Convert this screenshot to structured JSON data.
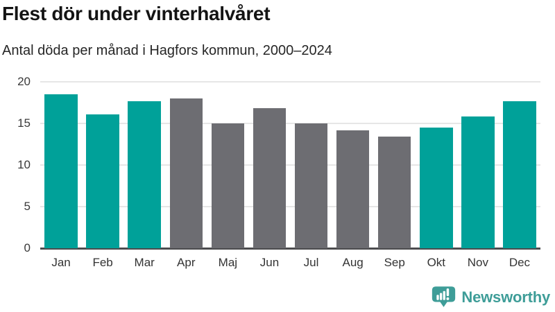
{
  "chart_data": {
    "type": "bar",
    "title": "Flest dör under vinterhalvåret",
    "subtitle": "Antal döda per månad i Hagfors kommun, 2000–2024",
    "categories": [
      "Jan",
      "Feb",
      "Mar",
      "Apr",
      "Maj",
      "Jun",
      "Jul",
      "Aug",
      "Sep",
      "Okt",
      "Nov",
      "Dec"
    ],
    "values": [
      18.5,
      16.1,
      17.7,
      18.0,
      15.0,
      16.8,
      15.0,
      14.2,
      13.4,
      14.5,
      15.8,
      17.7
    ],
    "bar_colors": [
      "teal",
      "teal",
      "teal",
      "gray",
      "gray",
      "gray",
      "gray",
      "gray",
      "gray",
      "teal",
      "teal",
      "teal"
    ],
    "xlabel": "",
    "ylabel": "",
    "ylim": [
      0,
      20
    ],
    "yticks": [
      0,
      5,
      10,
      15,
      20
    ],
    "grid": "horizontal",
    "legend": "none"
  },
  "colors": {
    "teal": "#00a199",
    "gray": "#6d6d72",
    "gridline": "#e6e6e6",
    "axis_line": "#4c4c4e",
    "title_text": "#141414",
    "subtitle_text": "#262626",
    "tick_text": "#3a3a3a",
    "logo_teal": "#3e9d98"
  },
  "branding": {
    "logo_text": "Newsworthy",
    "logo_icon": "newsworthy-speech-bubble-bar-chart-icon"
  }
}
